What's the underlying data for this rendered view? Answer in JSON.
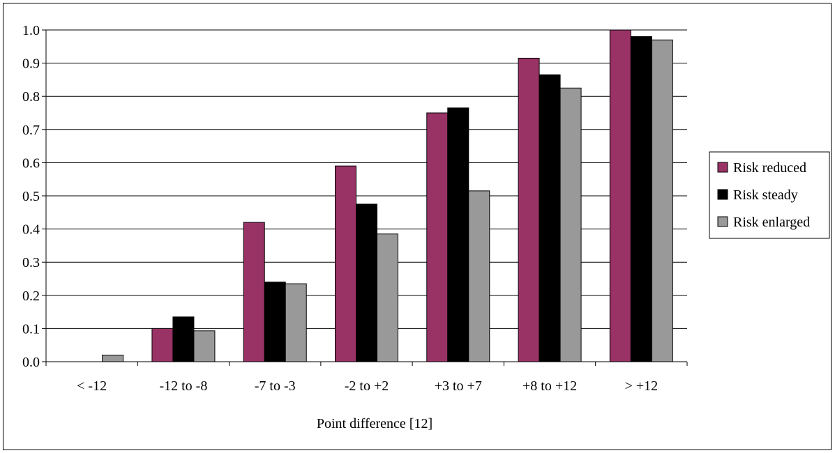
{
  "chart_data": {
    "type": "bar",
    "title": "",
    "xlabel": "Point difference [12]",
    "ylabel": "",
    "ylim": [
      0,
      1
    ],
    "yticks": [
      "0.0",
      "0.1",
      "0.2",
      "0.3",
      "0.4",
      "0.5",
      "0.6",
      "0.7",
      "0.8",
      "0.9",
      "1.0"
    ],
    "grid": "horizontal",
    "legend_position": "right",
    "categories": [
      "< -12",
      "-12 to -8",
      "-7 to -3",
      "-2 to +2",
      "+3 to +7",
      "+8 to +12",
      "> +12"
    ],
    "series": [
      {
        "name": "Risk reduced",
        "color": "#993366",
        "values": [
          0.0,
          0.1,
          0.42,
          0.59,
          0.75,
          0.915,
          1.0
        ]
      },
      {
        "name": "Risk steady",
        "color": "#000000",
        "values": [
          0.0,
          0.135,
          0.24,
          0.475,
          0.765,
          0.865,
          0.98
        ]
      },
      {
        "name": "Risk enlarged",
        "color": "#999999",
        "values": [
          0.02,
          0.093,
          0.235,
          0.385,
          0.515,
          0.825,
          0.97
        ]
      }
    ]
  }
}
